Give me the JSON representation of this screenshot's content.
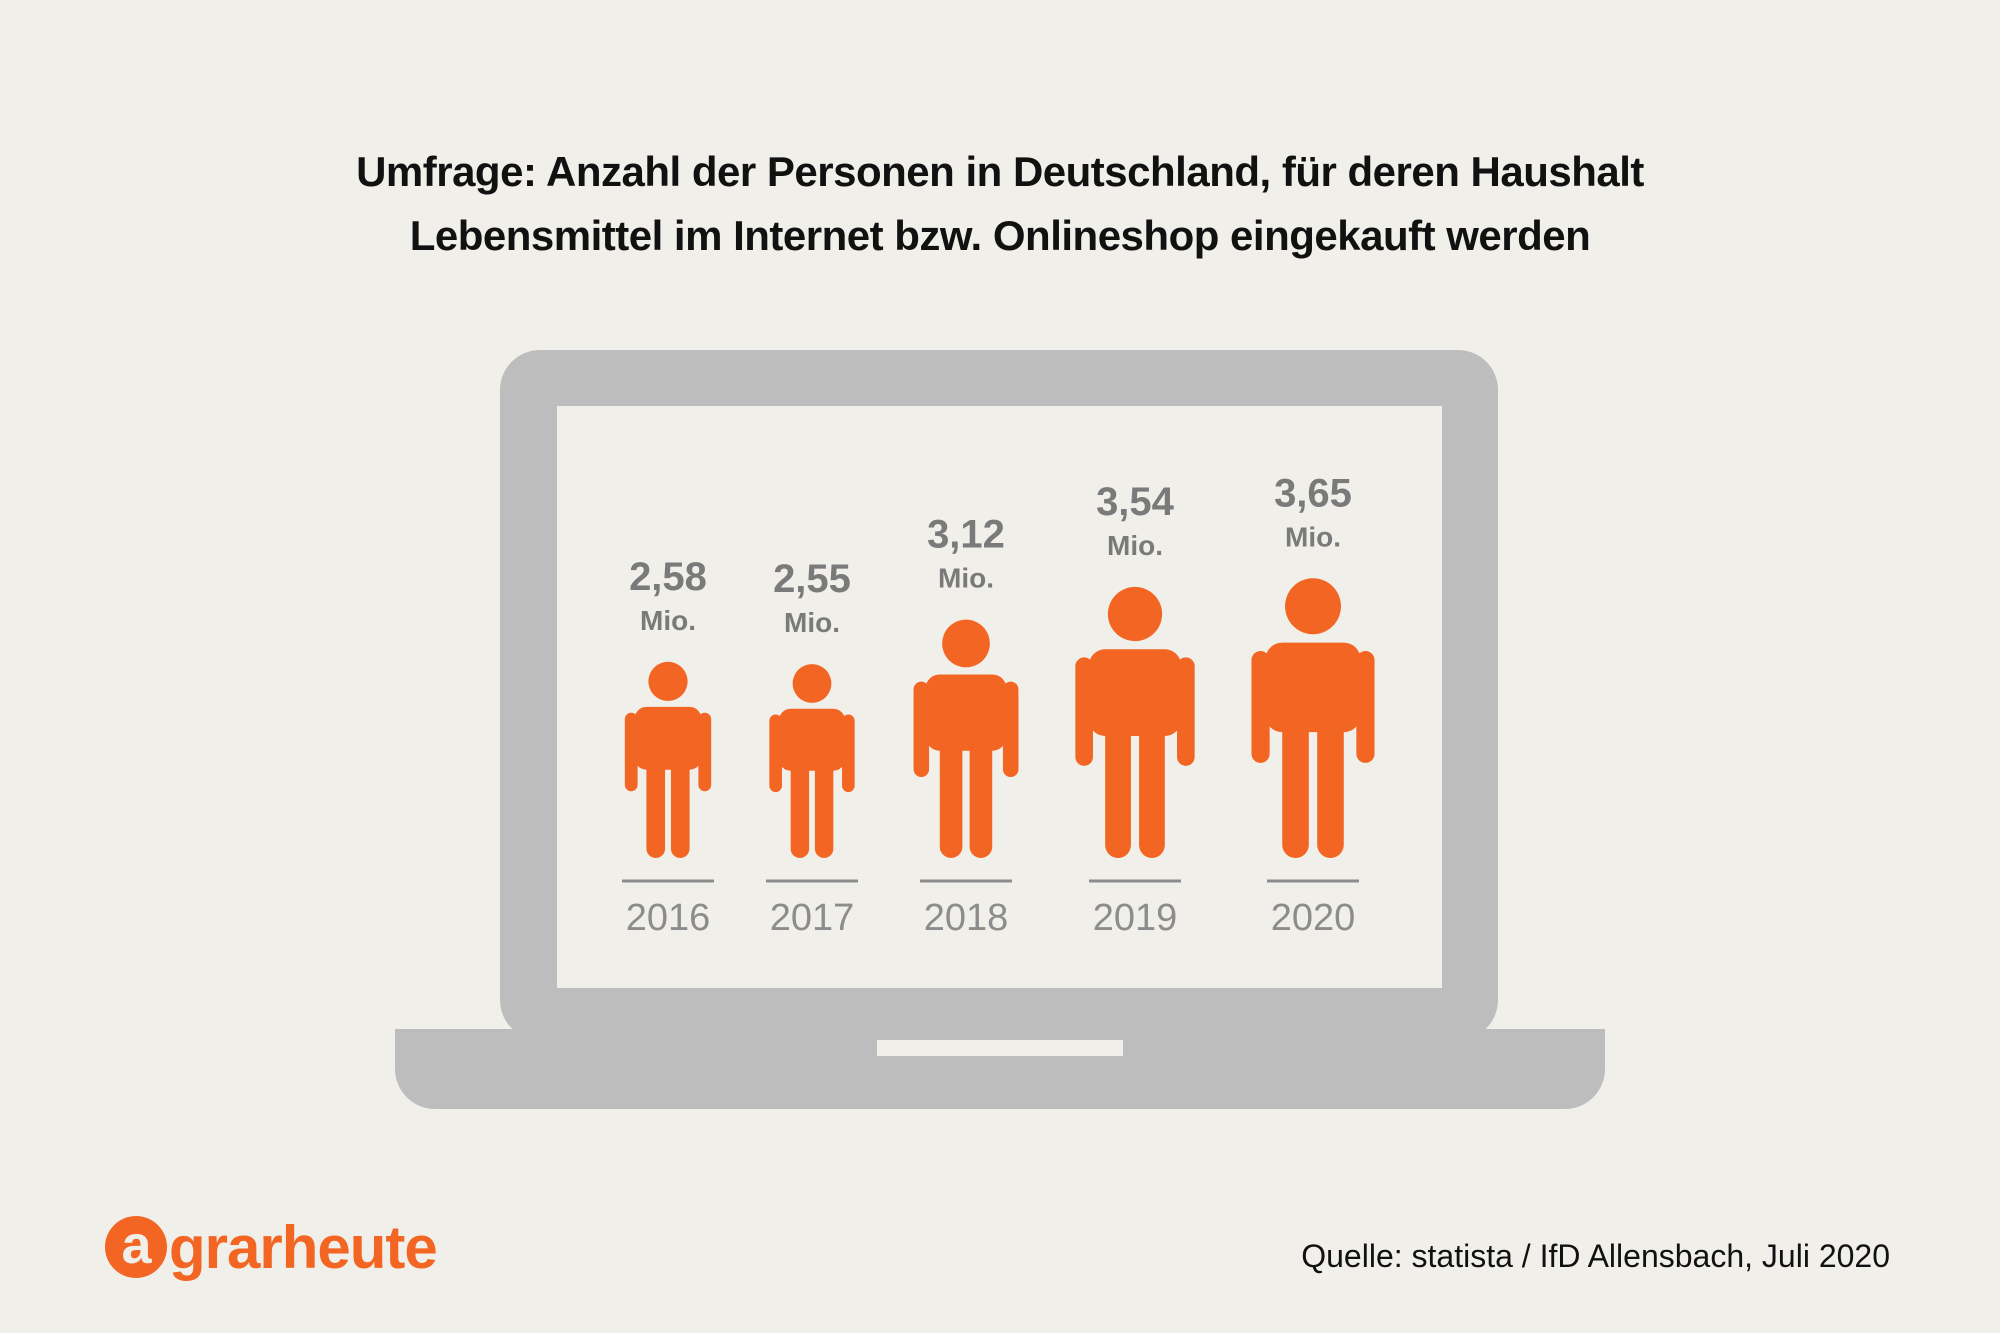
{
  "title": {
    "line1": "Umfrage: Anzahl der Personen in Deutschland, für deren Haushalt",
    "line2": "Lebensmittel im Internet bzw. Onlineshop eingekauft werden"
  },
  "chart_data": {
    "type": "bar",
    "categories": [
      "2016",
      "2017",
      "2018",
      "2019",
      "2020"
    ],
    "values": [
      2.58,
      2.55,
      3.12,
      3.54,
      3.65
    ],
    "value_labels": [
      "2,58",
      "2,55",
      "3,12",
      "3,54",
      "3,65"
    ],
    "unit_label": "Mio.",
    "xlabel": "",
    "ylabel": "",
    "legend": "none",
    "grid": false
  },
  "colors": {
    "figure": "#f26522",
    "laptop": "#bdbdbd",
    "screen": "#f1efea",
    "value_text": "#7a7a7a",
    "year_text": "#8c8c8c"
  },
  "brand": {
    "logo_initial": "a",
    "logo_rest": "grarheute"
  },
  "source": "Quelle: statista / IfD Allensbach, Juli 2020"
}
